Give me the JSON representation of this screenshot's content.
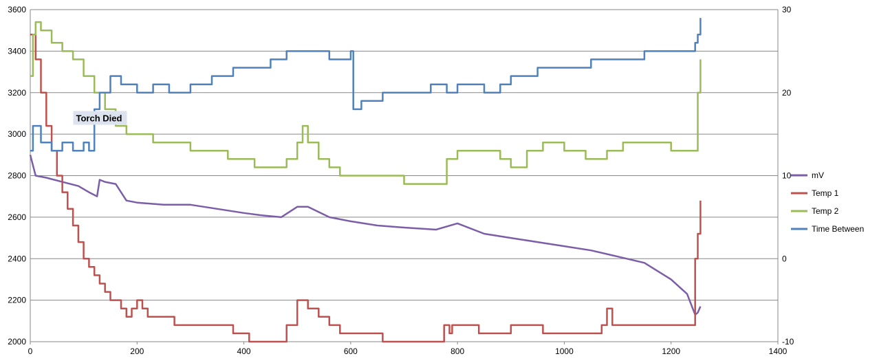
{
  "chart_data": {
    "type": "line",
    "title": "",
    "xlabel": "",
    "ylabel": "",
    "y2label": "",
    "xlim": [
      0,
      1400
    ],
    "ylim": [
      2000,
      3600
    ],
    "y2lim": [
      -10,
      30
    ],
    "grid": "horizontal",
    "legend_position": "right",
    "x_ticks": [
      0,
      200,
      400,
      600,
      800,
      1000,
      1200,
      1400
    ],
    "y_ticks": [
      2000,
      2200,
      2400,
      2600,
      2800,
      3000,
      3200,
      3400,
      3600
    ],
    "y2_ticks": [
      -10,
      0,
      10,
      20,
      30
    ],
    "annotation": {
      "text": "Torch Died",
      "x": 105,
      "y": 3075
    },
    "series": [
      {
        "name": "mV",
        "axis": "left",
        "color": "#7B5EA7",
        "x": [
          0,
          10,
          30,
          60,
          90,
          110,
          125,
          130,
          140,
          160,
          180,
          200,
          250,
          300,
          350,
          400,
          430,
          470,
          500,
          520,
          560,
          600,
          650,
          700,
          760,
          800,
          850,
          900,
          950,
          1000,
          1050,
          1100,
          1150,
          1200,
          1230,
          1245,
          1250,
          1255
        ],
        "y": [
          2900,
          2800,
          2790,
          2770,
          2750,
          2720,
          2700,
          2780,
          2770,
          2760,
          2680,
          2670,
          2660,
          2660,
          2640,
          2620,
          2610,
          2600,
          2650,
          2650,
          2600,
          2580,
          2560,
          2550,
          2540,
          2570,
          2520,
          2500,
          2480,
          2460,
          2440,
          2410,
          2380,
          2300,
          2230,
          2130,
          2140,
          2170
        ]
      },
      {
        "name": "Temp 1",
        "axis": "right",
        "color": "#C0504D",
        "x": [
          0,
          10,
          20,
          30,
          40,
          50,
          60,
          70,
          80,
          90,
          100,
          110,
          120,
          130,
          140,
          150,
          160,
          170,
          180,
          190,
          200,
          210,
          220,
          230,
          270,
          380,
          410,
          480,
          500,
          520,
          540,
          560,
          580,
          660,
          690,
          770,
          775,
          785,
          790,
          800,
          840,
          900,
          920,
          960,
          1000,
          1070,
          1080,
          1090,
          1200,
          1240,
          1245,
          1250,
          1255
        ],
        "y": [
          27,
          24,
          20,
          16,
          13,
          10,
          8,
          6,
          4,
          2,
          0,
          -1,
          -2,
          -3,
          -4,
          -5,
          -5,
          -6,
          -7,
          -6,
          -5,
          -6,
          -7,
          -7,
          -8,
          -9,
          -10,
          -8,
          -5,
          -6,
          -7,
          -8,
          -9,
          -10,
          -10,
          -10,
          -8,
          -9,
          -8,
          -8,
          -9,
          -8,
          -8,
          -9,
          -9,
          -8,
          -6,
          -8,
          -8,
          -8,
          0,
          3,
          7
        ]
      },
      {
        "name": "Temp 2",
        "axis": "right",
        "color": "#9BBB59",
        "x": [
          0,
          5,
          10,
          20,
          40,
          60,
          80,
          100,
          120,
          140,
          160,
          180,
          200,
          230,
          260,
          300,
          350,
          370,
          420,
          450,
          480,
          500,
          510,
          520,
          540,
          560,
          580,
          600,
          650,
          700,
          760,
          780,
          800,
          840,
          880,
          900,
          930,
          960,
          1000,
          1040,
          1070,
          1080,
          1110,
          1200,
          1230,
          1245,
          1250,
          1255
        ],
        "y": [
          22,
          27,
          28.5,
          27.5,
          26,
          25,
          24,
          22,
          20,
          18,
          16,
          15,
          15,
          14,
          14,
          13,
          13,
          12,
          11,
          11,
          12,
          14,
          16,
          14,
          12,
          11,
          10,
          10,
          10,
          9,
          9,
          12,
          13,
          13,
          12,
          11,
          13,
          14,
          13,
          12,
          12,
          13,
          14,
          13,
          13,
          13,
          20,
          24
        ]
      },
      {
        "name": "Time Between",
        "axis": "right",
        "color": "#4F81BD",
        "x": [
          0,
          5,
          20,
          40,
          60,
          80,
          100,
          110,
          120,
          130,
          150,
          170,
          200,
          230,
          260,
          300,
          340,
          380,
          420,
          450,
          480,
          510,
          540,
          560,
          600,
          605,
          620,
          660,
          700,
          750,
          780,
          800,
          850,
          880,
          900,
          950,
          1000,
          1050,
          1100,
          1150,
          1200,
          1230,
          1245,
          1250,
          1255
        ],
        "y": [
          13,
          16,
          14,
          13,
          14,
          13,
          14,
          13,
          18,
          20,
          22,
          21,
          20,
          21,
          20,
          21,
          22,
          23,
          23,
          24,
          25,
          25,
          25,
          24,
          25,
          18,
          19,
          20,
          20,
          21,
          20,
          21,
          20,
          21,
          22,
          23,
          23,
          24,
          24,
          25,
          25,
          25,
          26,
          27,
          29
        ]
      }
    ]
  }
}
